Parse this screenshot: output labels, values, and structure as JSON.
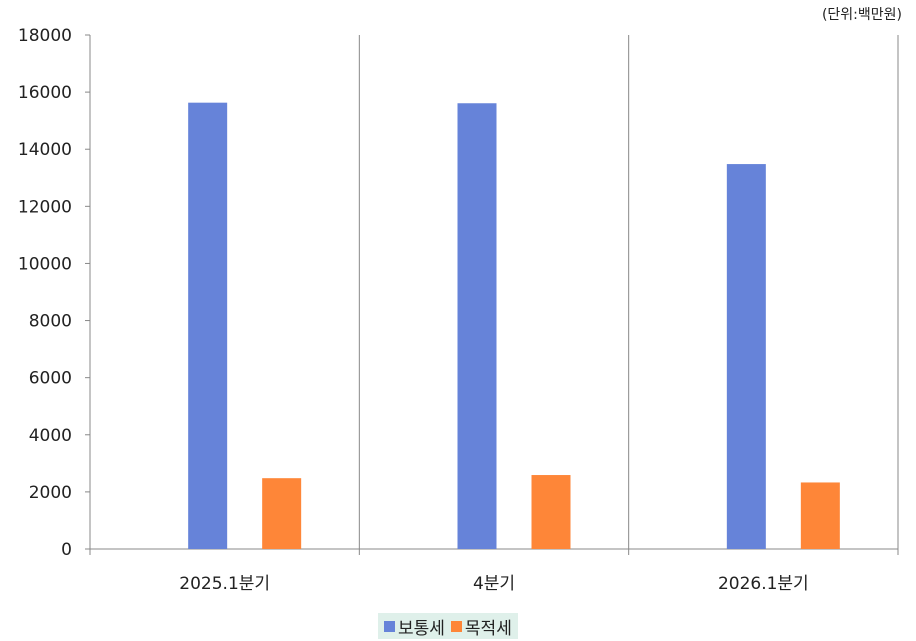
{
  "unit_label": "(단위:백만원)",
  "colors": {
    "series_0": "#6683d9",
    "series_1": "#fe8638",
    "axis": "#888888",
    "legend_bg": "#dff0ea"
  },
  "chart_data": {
    "type": "bar",
    "categories": [
      "2025.1분기",
      "4분기",
      "2026.1분기"
    ],
    "series": [
      {
        "name": "보통세",
        "values": [
          15630,
          15610,
          13480
        ]
      },
      {
        "name": "목적세",
        "values": [
          2480,
          2590,
          2330
        ]
      }
    ],
    "ylim": [
      0,
      18000
    ],
    "yticks": [
      0,
      2000,
      4000,
      6000,
      8000,
      10000,
      12000,
      14000,
      16000,
      18000
    ],
    "title": "",
    "xlabel": "",
    "ylabel": "",
    "grid": false,
    "legend_position": "bottom"
  }
}
